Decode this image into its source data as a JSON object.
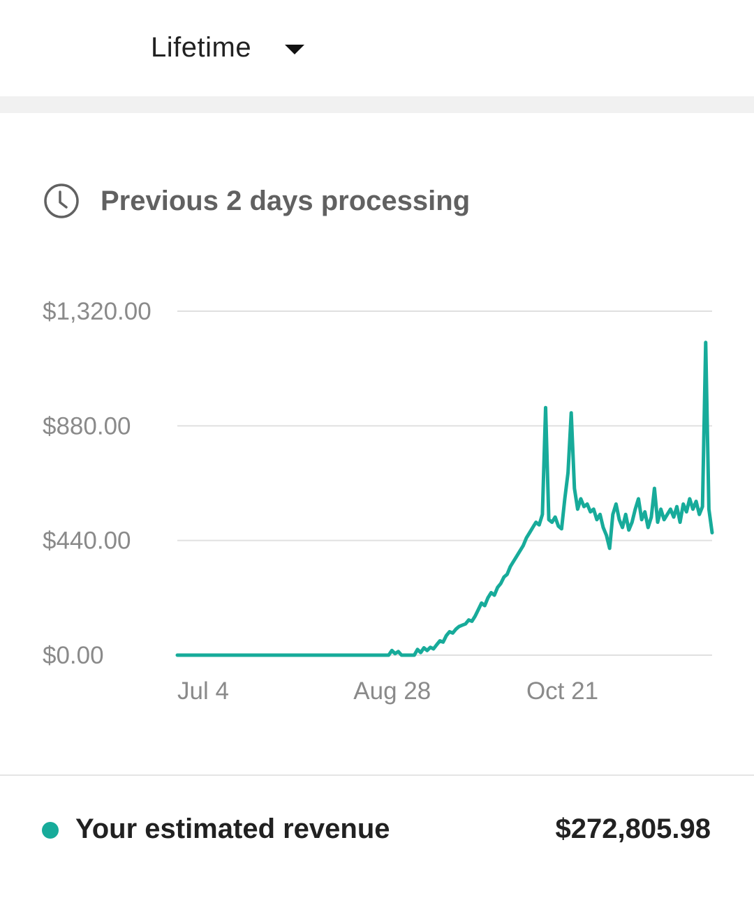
{
  "range_selector": {
    "label": "Lifetime",
    "icon": "caret-down-icon"
  },
  "processing_notice": {
    "icon": "clock-icon",
    "text": "Previous 2 days processing"
  },
  "colors": {
    "series": "#17ab9a",
    "grid": "#e0e0e0",
    "tick_text": "#8a8a8a"
  },
  "chart_data": {
    "type": "line",
    "ylim": [
      0,
      1320
    ],
    "y_ticks": [
      {
        "value": 0,
        "label": "$0.00"
      },
      {
        "value": 440,
        "label": "$440.00"
      },
      {
        "value": 880,
        "label": "$880.00"
      },
      {
        "value": 1320,
        "label": "$1,320.00"
      }
    ],
    "x_ticks": [
      {
        "day": 0,
        "label": "Jul 4"
      },
      {
        "day": 55,
        "label": "Aug 28"
      },
      {
        "day": 109,
        "label": "Oct 21"
      }
    ],
    "xlim": [
      0,
      167
    ],
    "series": [
      {
        "color": "#17ab9a",
        "points": [
          [
            0,
            0
          ],
          [
            10,
            0
          ],
          [
            20,
            0
          ],
          [
            30,
            0
          ],
          [
            40,
            0
          ],
          [
            50,
            0
          ],
          [
            60,
            0
          ],
          [
            66,
            0
          ],
          [
            67,
            18
          ],
          [
            68,
            6
          ],
          [
            69,
            14
          ],
          [
            70,
            0
          ],
          [
            74,
            0
          ],
          [
            75,
            22
          ],
          [
            76,
            10
          ],
          [
            77,
            28
          ],
          [
            78,
            18
          ],
          [
            79,
            30
          ],
          [
            80,
            24
          ],
          [
            81,
            40
          ],
          [
            82,
            55
          ],
          [
            83,
            50
          ],
          [
            84,
            75
          ],
          [
            85,
            90
          ],
          [
            86,
            85
          ],
          [
            87,
            100
          ],
          [
            88,
            110
          ],
          [
            89,
            115
          ],
          [
            90,
            120
          ],
          [
            91,
            135
          ],
          [
            92,
            130
          ],
          [
            93,
            150
          ],
          [
            94,
            175
          ],
          [
            95,
            200
          ],
          [
            96,
            190
          ],
          [
            97,
            220
          ],
          [
            98,
            240
          ],
          [
            99,
            230
          ],
          [
            100,
            260
          ],
          [
            101,
            275
          ],
          [
            102,
            300
          ],
          [
            103,
            310
          ],
          [
            104,
            340
          ],
          [
            105,
            360
          ],
          [
            106,
            380
          ],
          [
            107,
            400
          ],
          [
            108,
            420
          ],
          [
            109,
            450
          ],
          [
            110,
            470
          ],
          [
            111,
            490
          ],
          [
            112,
            510
          ],
          [
            113,
            500
          ],
          [
            114,
            540
          ],
          [
            115,
            950
          ],
          [
            116,
            520
          ],
          [
            117,
            510
          ],
          [
            118,
            530
          ],
          [
            119,
            495
          ],
          [
            120,
            485
          ],
          [
            121,
            600
          ],
          [
            122,
            700
          ],
          [
            123,
            930
          ],
          [
            124,
            640
          ],
          [
            125,
            560
          ],
          [
            126,
            600
          ],
          [
            127,
            570
          ],
          [
            128,
            580
          ],
          [
            129,
            550
          ],
          [
            130,
            560
          ],
          [
            131,
            520
          ],
          [
            132,
            540
          ],
          [
            133,
            490
          ],
          [
            134,
            460
          ],
          [
            135,
            410
          ],
          [
            136,
            540
          ],
          [
            137,
            580
          ],
          [
            138,
            520
          ],
          [
            139,
            490
          ],
          [
            140,
            540
          ],
          [
            141,
            480
          ],
          [
            142,
            510
          ],
          [
            143,
            560
          ],
          [
            144,
            600
          ],
          [
            145,
            520
          ],
          [
            146,
            550
          ],
          [
            147,
            490
          ],
          [
            148,
            530
          ],
          [
            149,
            640
          ],
          [
            150,
            510
          ],
          [
            151,
            560
          ],
          [
            152,
            520
          ],
          [
            153,
            540
          ],
          [
            154,
            560
          ],
          [
            155,
            530
          ],
          [
            156,
            570
          ],
          [
            157,
            510
          ],
          [
            158,
            580
          ],
          [
            159,
            550
          ],
          [
            160,
            600
          ],
          [
            161,
            560
          ],
          [
            162,
            590
          ],
          [
            163,
            540
          ],
          [
            164,
            570
          ],
          [
            165,
            1200
          ],
          [
            166,
            560
          ],
          [
            167,
            470
          ]
        ]
      }
    ]
  },
  "legend": {
    "label": "Your estimated revenue",
    "value": "$272,805.98"
  }
}
